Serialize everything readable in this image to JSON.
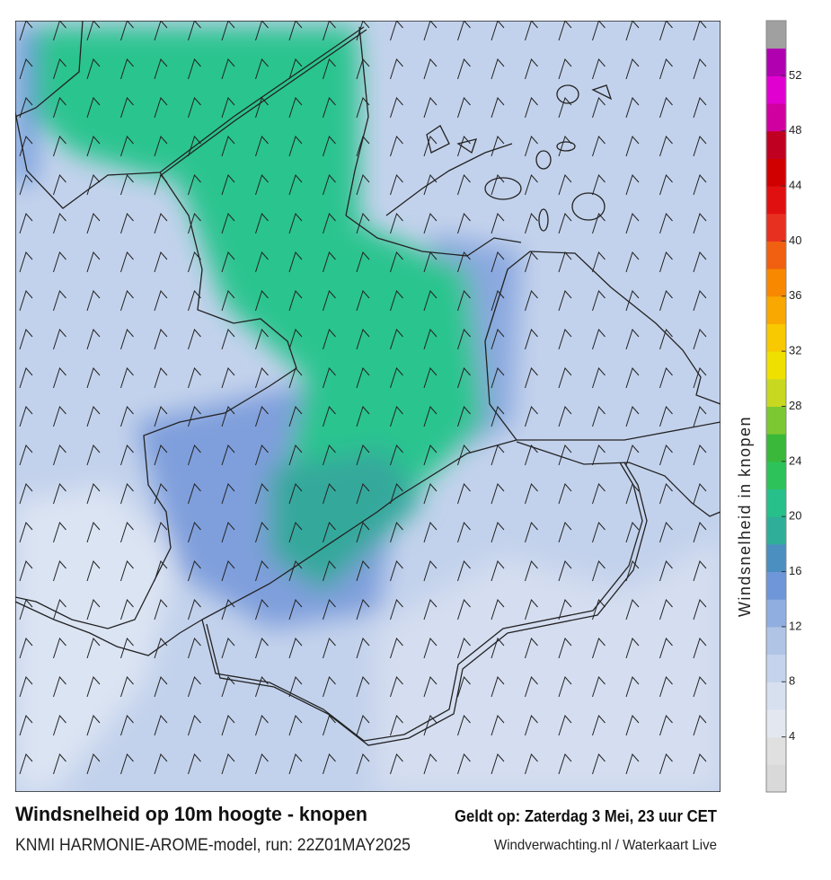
{
  "title": "Windsnelheid op 10m hoogte - knopen",
  "subtitle": "KNMI HARMONIE-AROME-model, run: 22Z01MAY2025",
  "valid_time": "Geldt op: Zaterdag 3 Mei, 23 uur CET",
  "credit": "Windverwachting.nl / Waterkaart Live",
  "colorbar": {
    "label": "Windsnelheid in knopen",
    "range": [
      0,
      56
    ],
    "ticks": [
      4,
      8,
      12,
      16,
      20,
      24,
      28,
      32,
      36,
      40,
      44,
      48,
      52
    ],
    "colors": [
      "#d9d9d9",
      "#e0e0e0",
      "#e3e8f0",
      "#d6e0ef",
      "#c5d4ec",
      "#b0c4e6",
      "#90aee0",
      "#6f96d8",
      "#4a8fc0",
      "#2fae9a",
      "#28c08a",
      "#2ec25a",
      "#3ab83a",
      "#7cc832",
      "#c8d820",
      "#f0e000",
      "#f8c800",
      "#f8a800",
      "#f88800",
      "#f06010",
      "#e83020",
      "#e01010",
      "#d00000",
      "#c00020",
      "#d000a0",
      "#e000d0",
      "#b000b0",
      "#a0a0a0"
    ]
  }
}
